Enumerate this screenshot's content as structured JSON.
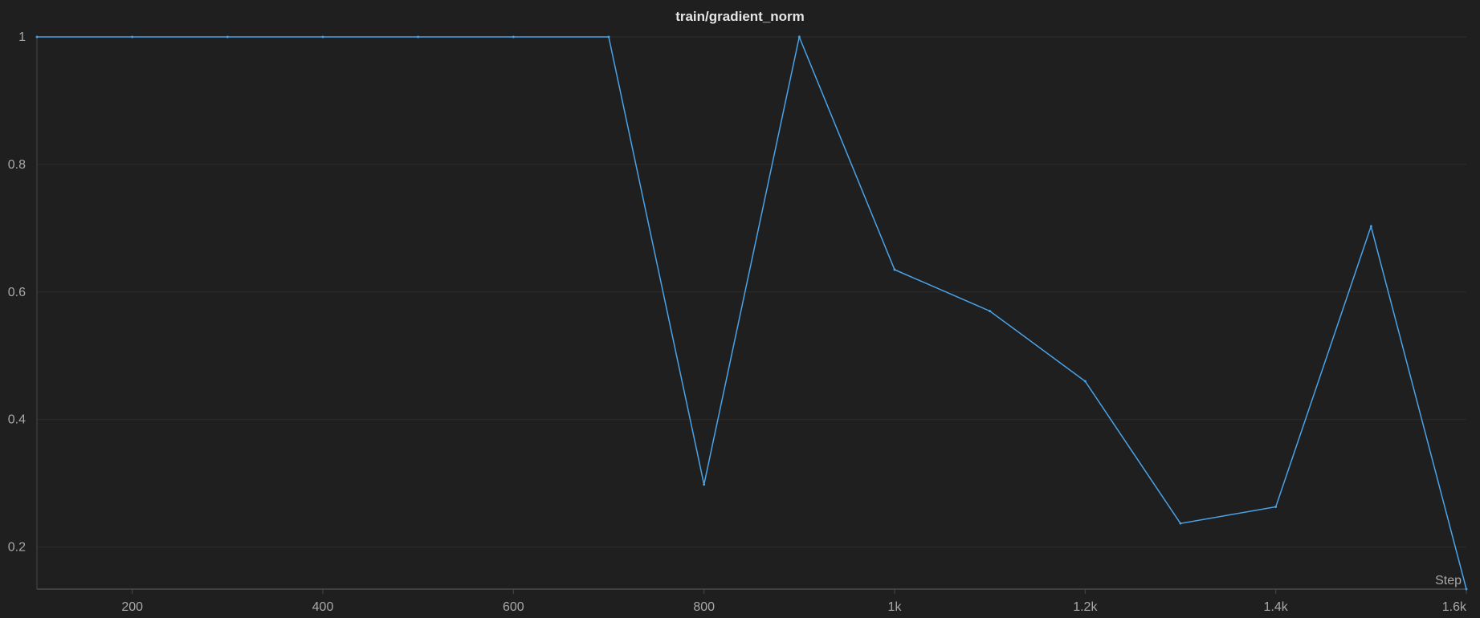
{
  "chart_data": {
    "type": "line",
    "title": "train/gradient_norm",
    "xlabel": "Step",
    "ylabel": "",
    "xlim": [
      100,
      1600
    ],
    "ylim": [
      0.134,
      1.0
    ],
    "x_ticks": [
      {
        "value": 200,
        "label": "200"
      },
      {
        "value": 400,
        "label": "400"
      },
      {
        "value": 600,
        "label": "600"
      },
      {
        "value": 800,
        "label": "800"
      },
      {
        "value": 1000,
        "label": "1k"
      },
      {
        "value": 1200,
        "label": "1.2k"
      },
      {
        "value": 1400,
        "label": "1.4k"
      },
      {
        "value": 1600,
        "label": "1.6k"
      }
    ],
    "y_ticks": [
      {
        "value": 0.2,
        "label": "0.2"
      },
      {
        "value": 0.4,
        "label": "0.4"
      },
      {
        "value": 0.6,
        "label": "0.6"
      },
      {
        "value": 0.8,
        "label": "0.8"
      },
      {
        "value": 1.0,
        "label": "1"
      }
    ],
    "grid": true,
    "legend": "none",
    "series": [
      {
        "color": "#4aa3e8",
        "x": [
          100,
          200,
          300,
          400,
          500,
          600,
          700,
          800,
          900,
          1000,
          1100,
          1200,
          1300,
          1400,
          1500,
          1600
        ],
        "y": [
          1.0,
          1.0,
          1.0,
          1.0,
          1.0,
          1.0,
          1.0,
          0.298,
          1.0,
          0.635,
          0.57,
          0.46,
          0.237,
          0.263,
          0.703,
          0.134
        ]
      }
    ]
  },
  "colors": {
    "background": "#1f1f1f",
    "grid": "#2d2d2d",
    "axis": "#4a4a4a",
    "text": "#a8a8a8",
    "title": "#e6e6e6"
  }
}
